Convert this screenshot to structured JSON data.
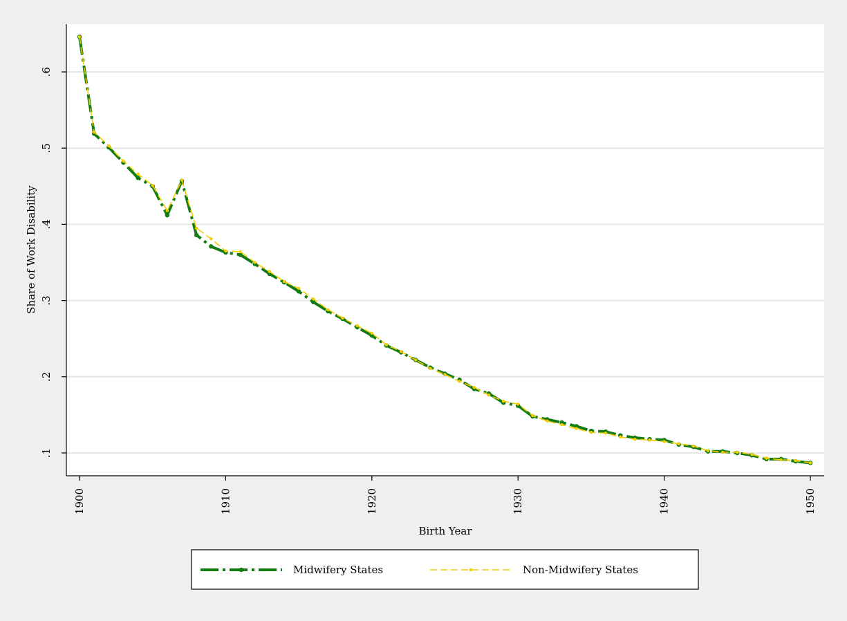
{
  "chart_data": {
    "type": "line",
    "title": "",
    "xlabel": "Birth Year",
    "ylabel": "Share of Work Disability",
    "xlim": [
      1900,
      1950
    ],
    "ylim": [
      0.085,
      0.66
    ],
    "x_ticks": [
      1900,
      1910,
      1920,
      1930,
      1940,
      1950
    ],
    "y_ticks": [
      0.1,
      0.2,
      0.3,
      0.4,
      0.5,
      0.6
    ],
    "y_tick_labels": [
      ".1",
      ".2",
      ".3",
      ".4",
      ".5",
      ".6"
    ],
    "grid": "horizontal",
    "legend_position": "bottom",
    "x": [
      1900,
      1901,
      1902,
      1903,
      1904,
      1905,
      1906,
      1907,
      1908,
      1909,
      1910,
      1911,
      1912,
      1913,
      1914,
      1915,
      1916,
      1917,
      1918,
      1919,
      1920,
      1921,
      1922,
      1923,
      1924,
      1925,
      1926,
      1927,
      1928,
      1929,
      1930,
      1931,
      1932,
      1933,
      1934,
      1935,
      1936,
      1937,
      1938,
      1939,
      1940,
      1941,
      1942,
      1943,
      1944,
      1945,
      1946,
      1947,
      1948,
      1949,
      1950
    ],
    "series": [
      {
        "name": "Midwifery States",
        "color": "#127c12",
        "style": "long-dash-dot",
        "values": [
          0.646,
          0.519,
          0.501,
          0.481,
          0.461,
          0.45,
          0.412,
          0.457,
          0.386,
          0.371,
          0.363,
          0.36,
          0.348,
          0.335,
          0.324,
          0.312,
          0.298,
          0.286,
          0.276,
          0.265,
          0.254,
          0.241,
          0.232,
          0.222,
          0.212,
          0.204,
          0.196,
          0.184,
          0.178,
          0.166,
          0.162,
          0.148,
          0.144,
          0.14,
          0.135,
          0.129,
          0.128,
          0.123,
          0.12,
          0.118,
          0.117,
          0.111,
          0.108,
          0.102,
          0.102,
          0.1,
          0.097,
          0.092,
          0.092,
          0.089,
          0.087
        ]
      },
      {
        "name": "Non-Midwifery States",
        "color": "#f5cc00",
        "style": "dash",
        "values": [
          0.646,
          0.521,
          0.503,
          0.483,
          0.466,
          0.451,
          0.418,
          0.458,
          0.395,
          0.381,
          0.365,
          0.364,
          0.35,
          0.338,
          0.325,
          0.316,
          0.302,
          0.288,
          0.277,
          0.267,
          0.257,
          0.242,
          0.233,
          0.222,
          0.211,
          0.203,
          0.194,
          0.186,
          0.176,
          0.168,
          0.164,
          0.149,
          0.142,
          0.137,
          0.132,
          0.127,
          0.126,
          0.121,
          0.118,
          0.117,
          0.115,
          0.112,
          0.109,
          0.103,
          0.101,
          0.101,
          0.098,
          0.093,
          0.091,
          0.09,
          0.087
        ]
      }
    ]
  }
}
